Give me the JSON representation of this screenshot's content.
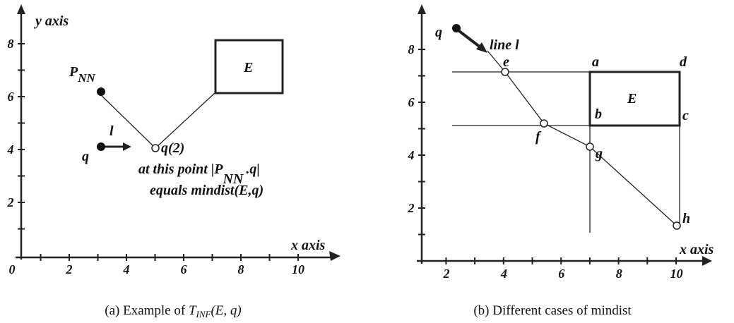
{
  "panel_a": {
    "y_axis_label": "y axis",
    "x_axis_label": "x axis",
    "x_ticks": [
      "0",
      "2",
      "4",
      "6",
      "8",
      "10"
    ],
    "y_ticks": [
      "8",
      "6",
      "4",
      "2"
    ],
    "p_nn": {
      "main": "P",
      "sub": "NN"
    },
    "rect_label": "E",
    "q_label": "q",
    "line_label": "l",
    "q2_label": "q(2)",
    "note": {
      "line1_start": "at this point |P",
      "line1_sub": "NN",
      "line1_end": ".q|",
      "line2": "equals mindist(E,q)"
    },
    "caption": {
      "prefix": "(a) Example of",
      "symbol": "T",
      "sub": "INF",
      "args": "(E, q)"
    }
  },
  "panel_b": {
    "x_axis_label": "x axis",
    "x_ticks": [
      "2",
      "4",
      "6",
      "8",
      "10"
    ],
    "y_ticks": [
      "8",
      "6",
      "4",
      "2"
    ],
    "q_label": "q",
    "line_label": "line l",
    "rect_label": "E",
    "corners": {
      "a": "a",
      "b": "b",
      "c": "c",
      "d": "d"
    },
    "points": {
      "e": "e",
      "f": "f",
      "g": "g",
      "h": "h"
    },
    "caption": "(b) Different cases of mindist"
  }
}
